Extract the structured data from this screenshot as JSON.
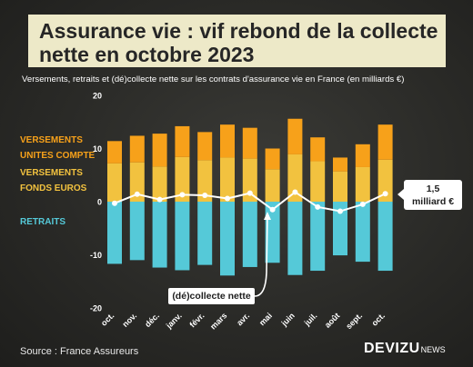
{
  "title_line1": "Assurance vie : vif rebond de la collecte",
  "title_line2": "nette en octobre 2023",
  "subtitle": "Versements, retraits et (dé)collecte nette sur les contrats d'assurance vie en France (en milliards €)",
  "legend": {
    "uc_line1": "VERSEMENTS",
    "uc_line2": "UNITES COMPTE",
    "euros_line1": "VERSEMENTS",
    "euros_line2": "FONDS EUROS",
    "retraits": "RETRAITS"
  },
  "callout_line1": "1,5",
  "callout_line2": "milliard €",
  "net_label": "(dé)collecte nette",
  "source": "Source : France Assureurs",
  "brand": "DEVIZU",
  "brand_suffix": "NEWS",
  "colors": {
    "uc": "#f7a11a",
    "euros": "#f2c23f",
    "retraits": "#55c9d8",
    "net_line": "#ffffff",
    "legend_uc": "#f7a11a",
    "legend_euros": "#f2c23f",
    "legend_retraits": "#55c9d8"
  },
  "chart_data": {
    "type": "bar",
    "categories": [
      "oct.",
      "nov.",
      "déc.",
      "janv.",
      "févr.",
      "mars",
      "avr.",
      "mai",
      "juin",
      "juil.",
      "août",
      "sept.",
      "oct."
    ],
    "series": [
      {
        "name": "VERSEMENTS FONDS EUROS",
        "values": [
          7.2,
          7.4,
          6.6,
          8.4,
          7.8,
          8.3,
          8.1,
          6.1,
          8.9,
          7.6,
          5.7,
          6.5,
          7.9
        ]
      },
      {
        "name": "VERSEMENTS UNITES COMPTE",
        "values": [
          4.2,
          5.0,
          6.2,
          5.8,
          5.3,
          6.2,
          5.8,
          3.9,
          6.7,
          4.5,
          2.6,
          4.3,
          6.6
        ]
      },
      {
        "name": "RETRAITS",
        "values": [
          -11.7,
          -11.0,
          -12.4,
          -12.9,
          -11.9,
          -13.9,
          -12.3,
          -11.5,
          -13.8,
          -13.0,
          -10.1,
          -11.3,
          -13.0
        ]
      },
      {
        "name": "(dé)collecte nette",
        "values": [
          -0.3,
          1.4,
          0.4,
          1.3,
          1.2,
          0.6,
          1.6,
          -1.5,
          1.8,
          -1.0,
          -1.8,
          -0.5,
          1.5
        ]
      }
    ],
    "y_ticks": [
      -20,
      -10,
      0,
      10,
      20
    ],
    "ylim": [
      -20,
      20
    ],
    "grid": false
  }
}
